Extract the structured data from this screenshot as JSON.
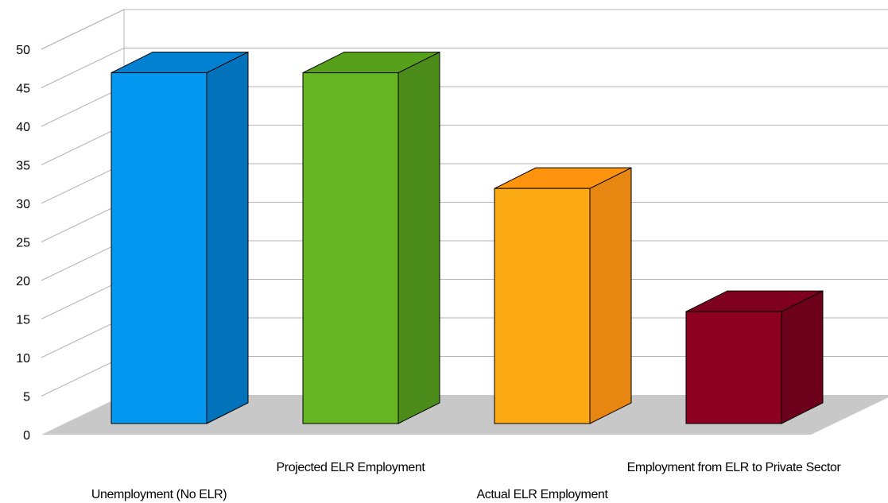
{
  "chart_data": {
    "type": "bar",
    "categories": [
      "Unemployment (No ELR)",
      "Projected ELR Employment",
      "Actual ELR Employment",
      "Employment from ELR to Private Sector"
    ],
    "values": [
      47,
      47,
      31.5,
      15
    ],
    "ylim": [
      0,
      50
    ],
    "yticks": [
      0,
      5,
      10,
      15,
      20,
      25,
      30,
      35,
      40,
      45,
      50
    ],
    "grid": true,
    "three_d": true,
    "legend": "none",
    "colors": [
      {
        "front": "#0497EF",
        "side": "#0272BA",
        "top": "#0280D2"
      },
      {
        "front": "#66B623",
        "side": "#4B8B19",
        "top": "#57A01C"
      },
      {
        "front": "#FCAA13",
        "side": "#E88612",
        "top": "#FE940D"
      },
      {
        "front": "#8E0020",
        "side": "#6D001A",
        "top": "#7E001E"
      }
    ],
    "floor_color": "#C8C8C8",
    "grid_color": "#B3B3B3"
  }
}
